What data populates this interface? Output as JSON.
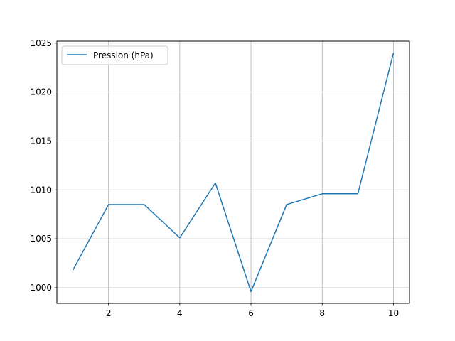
{
  "chart_data": {
    "type": "line",
    "title": "",
    "xlabel": "",
    "ylabel": "",
    "x": [
      1,
      2,
      3,
      4,
      5,
      6,
      7,
      8,
      9,
      10
    ],
    "series": [
      {
        "name": "Pression (hPa)",
        "color": "#1f77b4",
        "values": [
          1001.8,
          1008.5,
          1008.5,
          1005.1,
          1010.7,
          999.6,
          1008.5,
          1009.6,
          1009.6,
          1024.0
        ]
      }
    ],
    "xlim": [
      0.55,
      10.45
    ],
    "ylim": [
      998.4,
      1025.2
    ],
    "x_ticks": [
      2,
      4,
      6,
      8,
      10
    ],
    "y_ticks": [
      1000,
      1005,
      1010,
      1015,
      1020,
      1025
    ],
    "grid": true,
    "legend_position": "upper-left"
  }
}
